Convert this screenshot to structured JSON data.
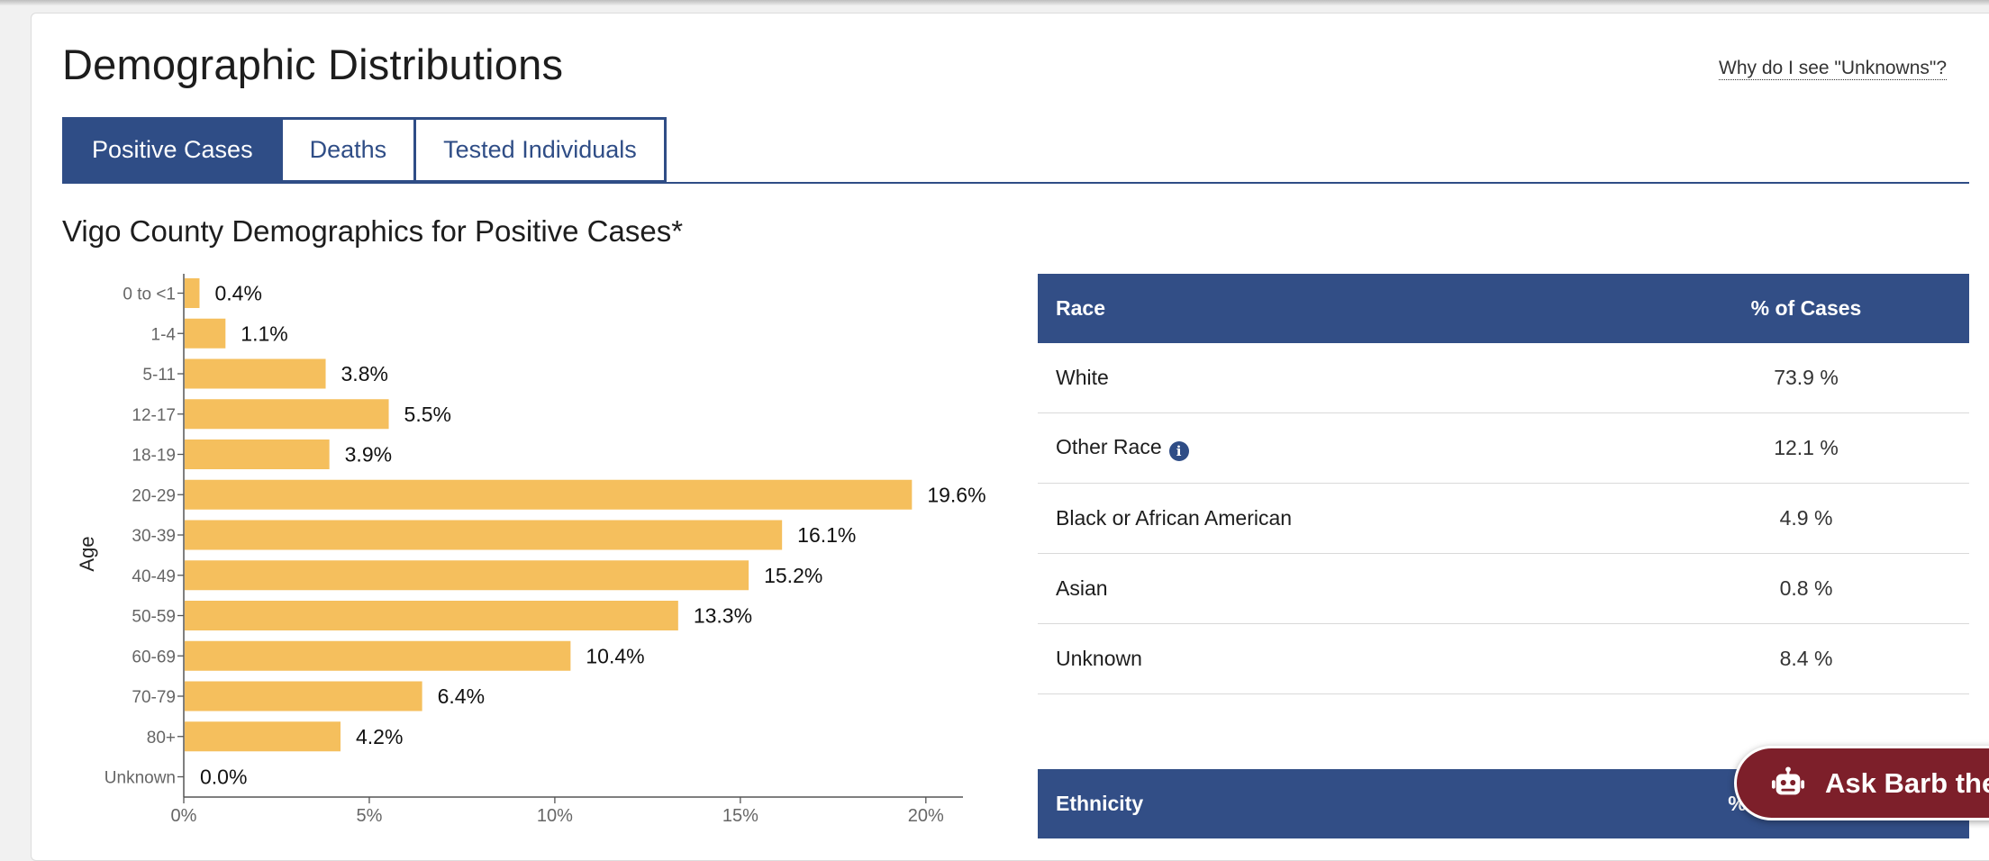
{
  "page": {
    "title": "Demographic Distributions",
    "unknowns_link": "Why do I see \"Unknowns\"?"
  },
  "tabs": [
    {
      "label": "Positive Cases",
      "active": true
    },
    {
      "label": "Deaths",
      "active": false
    },
    {
      "label": "Tested Individuals",
      "active": false
    }
  ],
  "section_title": "Vigo County Demographics for Positive Cases*",
  "colors": {
    "bar": "#f5bf5d",
    "primary": "#2f4d86",
    "ask_button": "#7d1f2a"
  },
  "chart_data": {
    "type": "bar",
    "orientation": "horizontal",
    "title": "",
    "xlabel": "",
    "ylabel": "Age",
    "categories": [
      "0 to <1",
      "1-4",
      "5-11",
      "12-17",
      "18-19",
      "20-29",
      "30-39",
      "40-49",
      "50-59",
      "60-69",
      "70-79",
      "80+",
      "Unknown"
    ],
    "values": [
      0.4,
      1.1,
      3.8,
      5.5,
      3.9,
      19.6,
      16.1,
      15.2,
      13.3,
      10.4,
      6.4,
      4.2,
      0.0
    ],
    "value_labels": [
      "0.4%",
      "1.1%",
      "3.8%",
      "5.5%",
      "3.9%",
      "19.6%",
      "16.1%",
      "15.2%",
      "13.3%",
      "10.4%",
      "6.4%",
      "4.2%",
      "0.0%"
    ],
    "xlim": [
      0,
      21
    ],
    "xticks": [
      0,
      5,
      10,
      15,
      20
    ],
    "xtick_labels": [
      "0%",
      "5%",
      "10%",
      "15%",
      "20%"
    ],
    "grid": false
  },
  "race_table": {
    "headers": [
      "Race",
      "% of Cases"
    ],
    "rows": [
      {
        "label": "White",
        "value": "73.9 %",
        "info": false
      },
      {
        "label": "Other Race",
        "value": "12.1 %",
        "info": true
      },
      {
        "label": "Black or African American",
        "value": "4.9 %",
        "info": false
      },
      {
        "label": "Asian",
        "value": "0.8 %",
        "info": false
      },
      {
        "label": "Unknown",
        "value": "8.4 %",
        "info": false
      }
    ]
  },
  "ethnicity_table": {
    "headers": [
      "Ethnicity",
      "% of C"
    ]
  },
  "ask_button": {
    "label": "Ask Barb the",
    "icon": "robot-icon"
  }
}
